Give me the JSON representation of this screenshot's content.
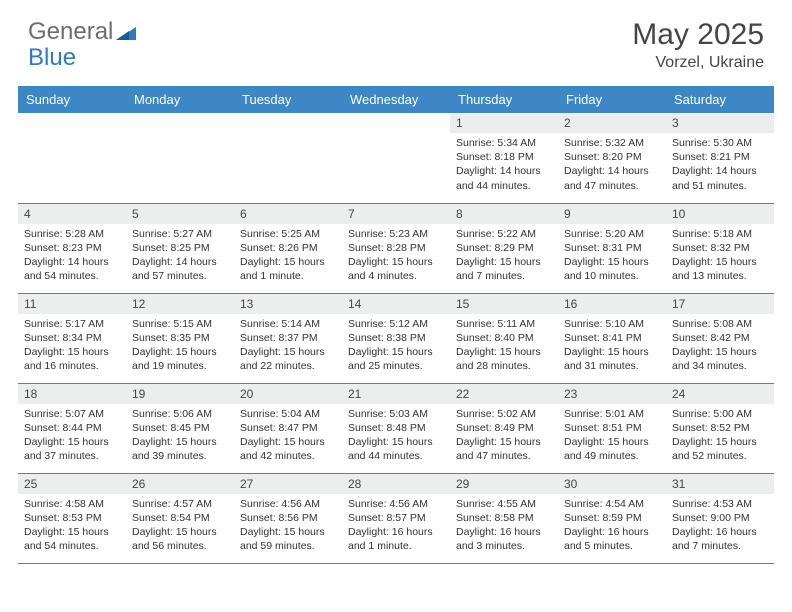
{
  "logo": {
    "gray": "General",
    "blue": "Blue"
  },
  "title": "May 2025",
  "subtitle": "Vorzel, Ukraine",
  "colors": {
    "header_bg": "#3d87c7",
    "header_fg": "#ffffff",
    "daynum_bg": "#eceded",
    "border": "#3d87c7",
    "logo_gray": "#6d6d6d",
    "logo_blue": "#2f7ac0"
  },
  "weekdays": [
    "Sunday",
    "Monday",
    "Tuesday",
    "Wednesday",
    "Thursday",
    "Friday",
    "Saturday"
  ],
  "weeks": [
    [
      null,
      null,
      null,
      null,
      {
        "n": "1",
        "sr": "Sunrise: 5:34 AM",
        "ss": "Sunset: 8:18 PM",
        "dl": "Daylight: 14 hours and 44 minutes."
      },
      {
        "n": "2",
        "sr": "Sunrise: 5:32 AM",
        "ss": "Sunset: 8:20 PM",
        "dl": "Daylight: 14 hours and 47 minutes."
      },
      {
        "n": "3",
        "sr": "Sunrise: 5:30 AM",
        "ss": "Sunset: 8:21 PM",
        "dl": "Daylight: 14 hours and 51 minutes."
      }
    ],
    [
      {
        "n": "4",
        "sr": "Sunrise: 5:28 AM",
        "ss": "Sunset: 8:23 PM",
        "dl": "Daylight: 14 hours and 54 minutes."
      },
      {
        "n": "5",
        "sr": "Sunrise: 5:27 AM",
        "ss": "Sunset: 8:25 PM",
        "dl": "Daylight: 14 hours and 57 minutes."
      },
      {
        "n": "6",
        "sr": "Sunrise: 5:25 AM",
        "ss": "Sunset: 8:26 PM",
        "dl": "Daylight: 15 hours and 1 minute."
      },
      {
        "n": "7",
        "sr": "Sunrise: 5:23 AM",
        "ss": "Sunset: 8:28 PM",
        "dl": "Daylight: 15 hours and 4 minutes."
      },
      {
        "n": "8",
        "sr": "Sunrise: 5:22 AM",
        "ss": "Sunset: 8:29 PM",
        "dl": "Daylight: 15 hours and 7 minutes."
      },
      {
        "n": "9",
        "sr": "Sunrise: 5:20 AM",
        "ss": "Sunset: 8:31 PM",
        "dl": "Daylight: 15 hours and 10 minutes."
      },
      {
        "n": "10",
        "sr": "Sunrise: 5:18 AM",
        "ss": "Sunset: 8:32 PM",
        "dl": "Daylight: 15 hours and 13 minutes."
      }
    ],
    [
      {
        "n": "11",
        "sr": "Sunrise: 5:17 AM",
        "ss": "Sunset: 8:34 PM",
        "dl": "Daylight: 15 hours and 16 minutes."
      },
      {
        "n": "12",
        "sr": "Sunrise: 5:15 AM",
        "ss": "Sunset: 8:35 PM",
        "dl": "Daylight: 15 hours and 19 minutes."
      },
      {
        "n": "13",
        "sr": "Sunrise: 5:14 AM",
        "ss": "Sunset: 8:37 PM",
        "dl": "Daylight: 15 hours and 22 minutes."
      },
      {
        "n": "14",
        "sr": "Sunrise: 5:12 AM",
        "ss": "Sunset: 8:38 PM",
        "dl": "Daylight: 15 hours and 25 minutes."
      },
      {
        "n": "15",
        "sr": "Sunrise: 5:11 AM",
        "ss": "Sunset: 8:40 PM",
        "dl": "Daylight: 15 hours and 28 minutes."
      },
      {
        "n": "16",
        "sr": "Sunrise: 5:10 AM",
        "ss": "Sunset: 8:41 PM",
        "dl": "Daylight: 15 hours and 31 minutes."
      },
      {
        "n": "17",
        "sr": "Sunrise: 5:08 AM",
        "ss": "Sunset: 8:42 PM",
        "dl": "Daylight: 15 hours and 34 minutes."
      }
    ],
    [
      {
        "n": "18",
        "sr": "Sunrise: 5:07 AM",
        "ss": "Sunset: 8:44 PM",
        "dl": "Daylight: 15 hours and 37 minutes."
      },
      {
        "n": "19",
        "sr": "Sunrise: 5:06 AM",
        "ss": "Sunset: 8:45 PM",
        "dl": "Daylight: 15 hours and 39 minutes."
      },
      {
        "n": "20",
        "sr": "Sunrise: 5:04 AM",
        "ss": "Sunset: 8:47 PM",
        "dl": "Daylight: 15 hours and 42 minutes."
      },
      {
        "n": "21",
        "sr": "Sunrise: 5:03 AM",
        "ss": "Sunset: 8:48 PM",
        "dl": "Daylight: 15 hours and 44 minutes."
      },
      {
        "n": "22",
        "sr": "Sunrise: 5:02 AM",
        "ss": "Sunset: 8:49 PM",
        "dl": "Daylight: 15 hours and 47 minutes."
      },
      {
        "n": "23",
        "sr": "Sunrise: 5:01 AM",
        "ss": "Sunset: 8:51 PM",
        "dl": "Daylight: 15 hours and 49 minutes."
      },
      {
        "n": "24",
        "sr": "Sunrise: 5:00 AM",
        "ss": "Sunset: 8:52 PM",
        "dl": "Daylight: 15 hours and 52 minutes."
      }
    ],
    [
      {
        "n": "25",
        "sr": "Sunrise: 4:58 AM",
        "ss": "Sunset: 8:53 PM",
        "dl": "Daylight: 15 hours and 54 minutes."
      },
      {
        "n": "26",
        "sr": "Sunrise: 4:57 AM",
        "ss": "Sunset: 8:54 PM",
        "dl": "Daylight: 15 hours and 56 minutes."
      },
      {
        "n": "27",
        "sr": "Sunrise: 4:56 AM",
        "ss": "Sunset: 8:56 PM",
        "dl": "Daylight: 15 hours and 59 minutes."
      },
      {
        "n": "28",
        "sr": "Sunrise: 4:56 AM",
        "ss": "Sunset: 8:57 PM",
        "dl": "Daylight: 16 hours and 1 minute."
      },
      {
        "n": "29",
        "sr": "Sunrise: 4:55 AM",
        "ss": "Sunset: 8:58 PM",
        "dl": "Daylight: 16 hours and 3 minutes."
      },
      {
        "n": "30",
        "sr": "Sunrise: 4:54 AM",
        "ss": "Sunset: 8:59 PM",
        "dl": "Daylight: 16 hours and 5 minutes."
      },
      {
        "n": "31",
        "sr": "Sunrise: 4:53 AM",
        "ss": "Sunset: 9:00 PM",
        "dl": "Daylight: 16 hours and 7 minutes."
      }
    ]
  ]
}
